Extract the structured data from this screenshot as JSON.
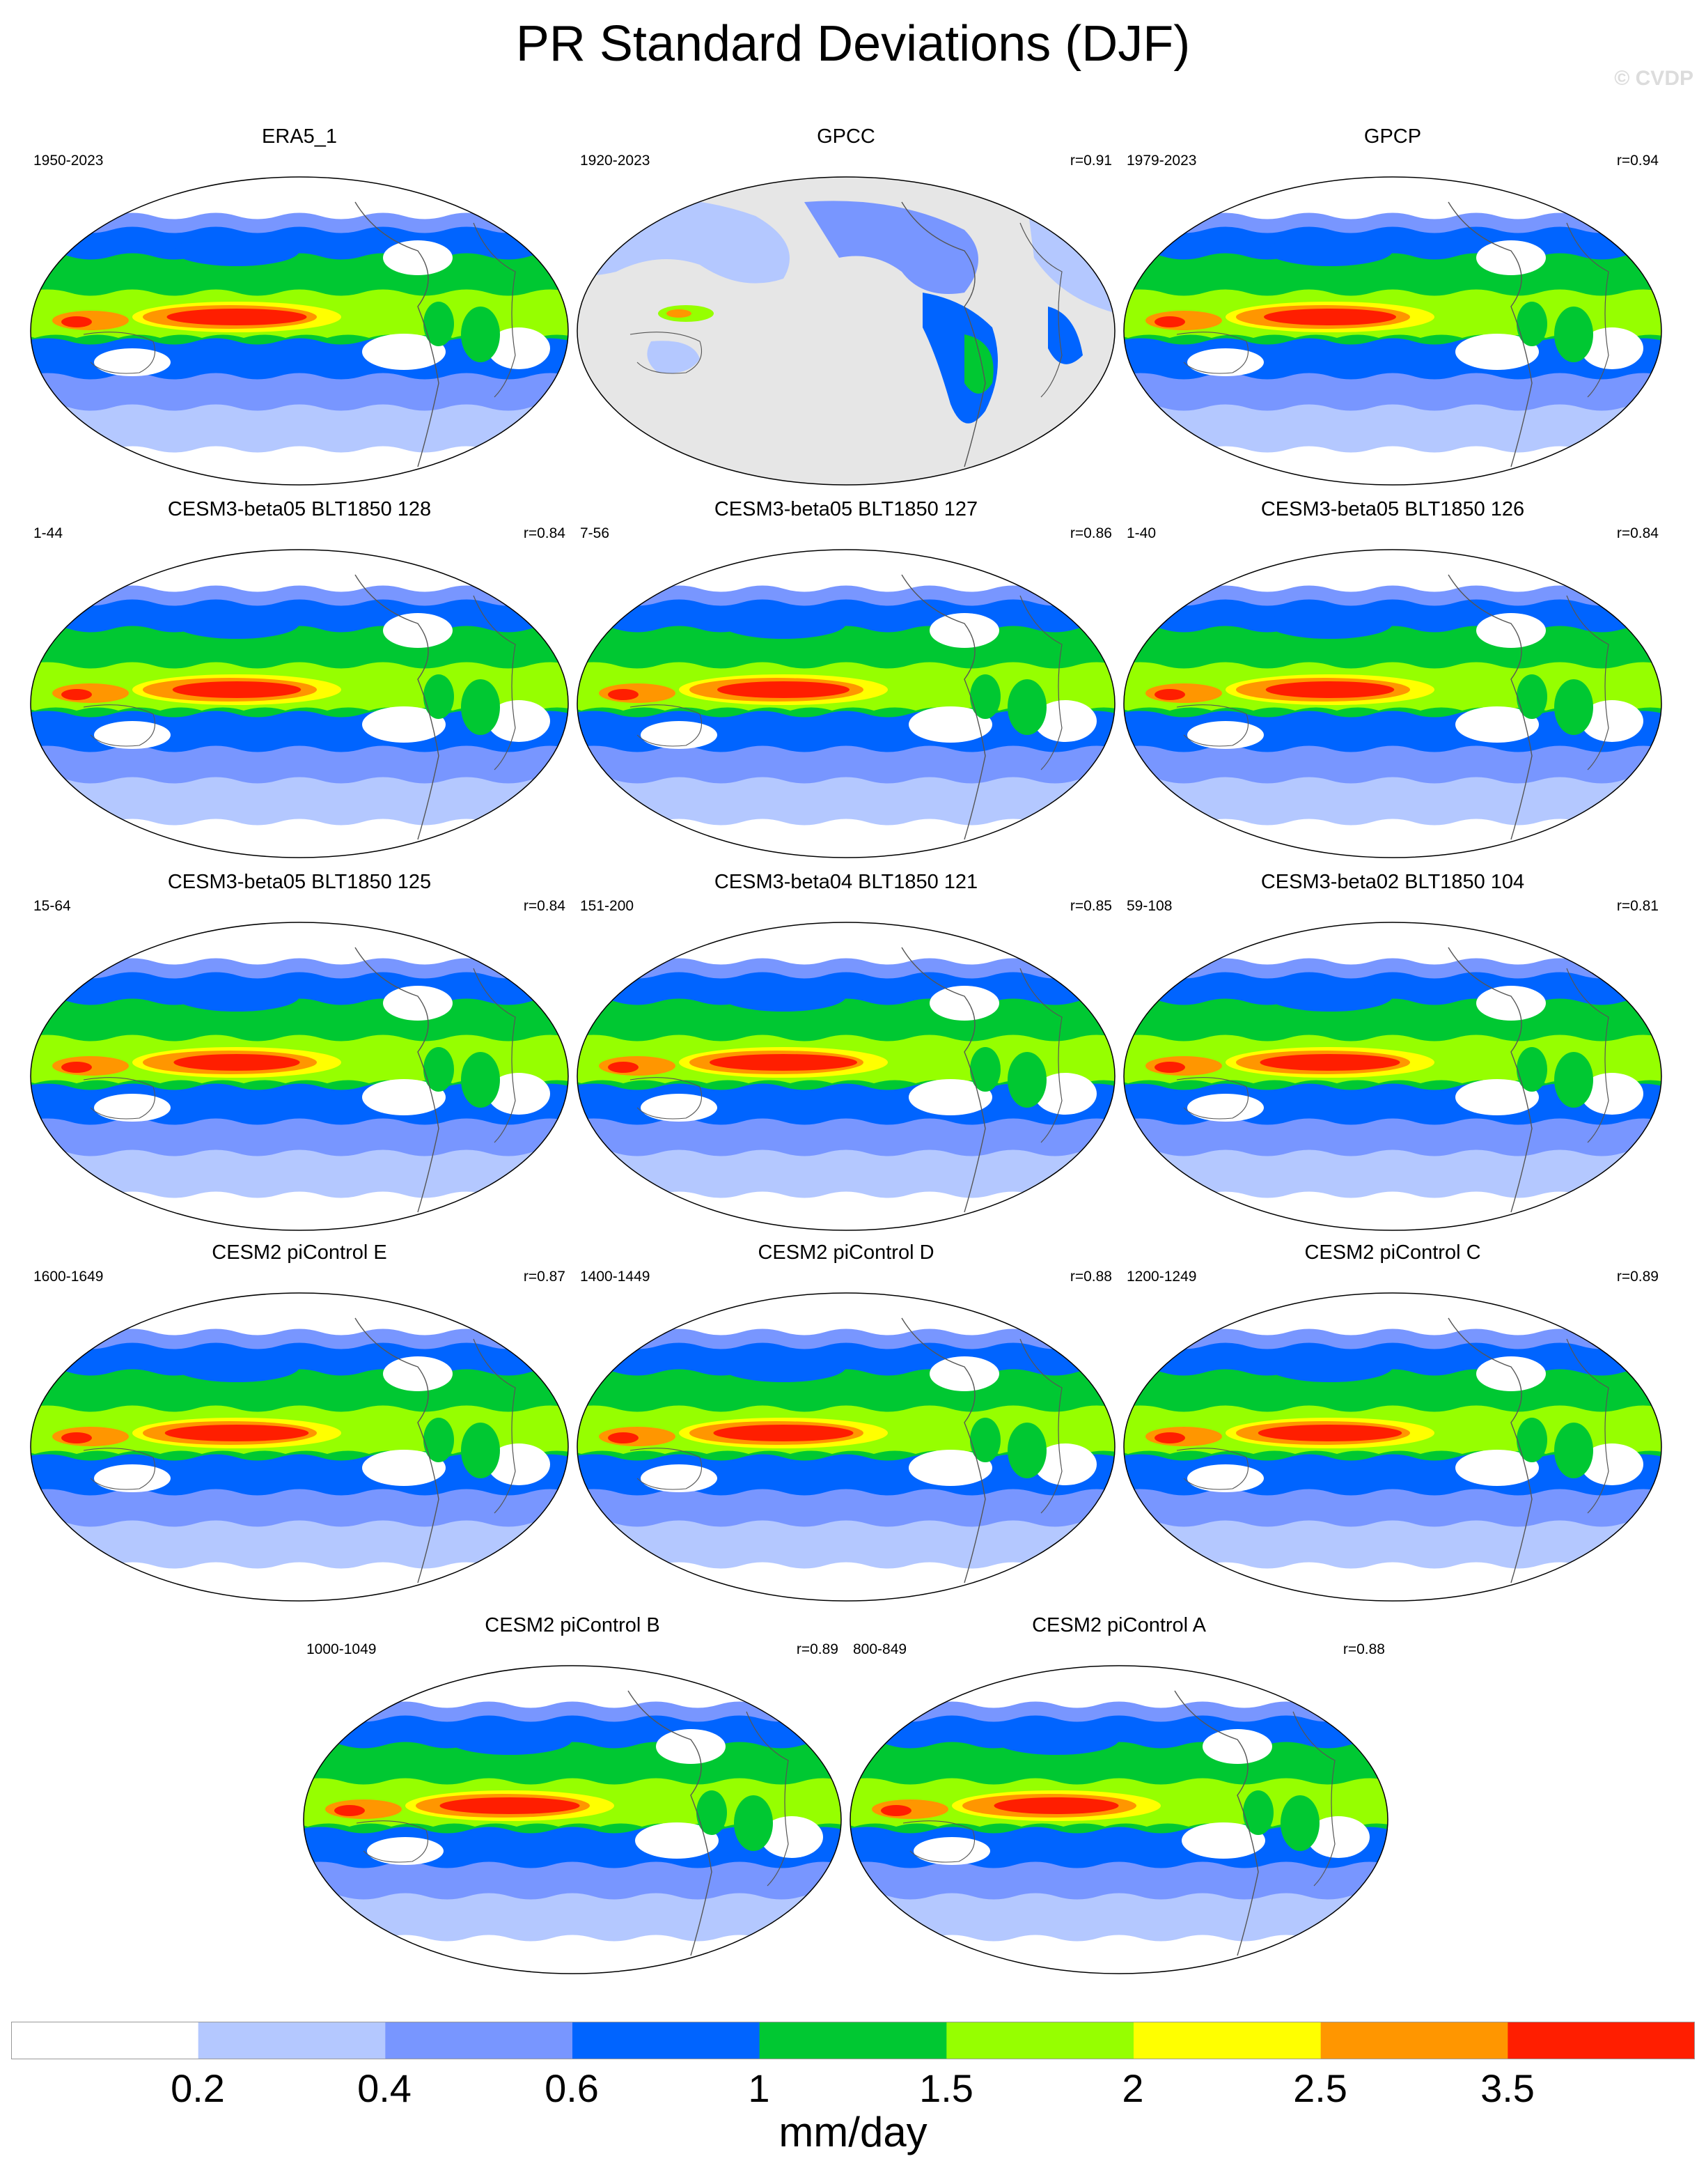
{
  "title": "PR Standard Deviations (DJF)",
  "watermark": "© CVDP",
  "panels": [
    {
      "title": "ERA5_1",
      "years": "1950-2023",
      "corr": ""
    },
    {
      "title": "GPCC",
      "years": "1920-2023",
      "corr": "r=0.91"
    },
    {
      "title": "GPCP",
      "years": "1979-2023",
      "corr": "r=0.94"
    },
    {
      "title": "CESM3-beta05 BLT1850 128",
      "years": "1-44",
      "corr": "r=0.84"
    },
    {
      "title": "CESM3-beta05 BLT1850 127",
      "years": "7-56",
      "corr": "r=0.86"
    },
    {
      "title": "CESM3-beta05 BLT1850 126",
      "years": "1-40",
      "corr": "r=0.84"
    },
    {
      "title": "CESM3-beta05 BLT1850 125",
      "years": "15-64",
      "corr": "r=0.84"
    },
    {
      "title": "CESM3-beta04 BLT1850 121",
      "years": "151-200",
      "corr": "r=0.85"
    },
    {
      "title": "CESM3-beta02 BLT1850 104",
      "years": "59-108",
      "corr": "r=0.81"
    },
    {
      "title": "CESM2 piControl E",
      "years": "1600-1649",
      "corr": "r=0.87"
    },
    {
      "title": "CESM2 piControl D",
      "years": "1400-1449",
      "corr": "r=0.88"
    },
    {
      "title": "CESM2 piControl C",
      "years": "1200-1249",
      "corr": "r=0.89"
    },
    {
      "title": "CESM2 piControl B",
      "years": "1000-1049",
      "corr": "r=0.89"
    },
    {
      "title": "CESM2 piControl A",
      "years": "800-849",
      "corr": "r=0.88"
    }
  ],
  "colorbar": {
    "unit": "mm/day",
    "ticks": [
      "0.2",
      "0.4",
      "0.6",
      "1",
      "1.5",
      "2",
      "2.5",
      "3.5"
    ],
    "colors": [
      "#ffffff",
      "#b4c8ff",
      "#7896ff",
      "#0064ff",
      "#00c832",
      "#96ff00",
      "#ffff00",
      "#ff9600",
      "#ff1e00"
    ]
  },
  "colors": {
    "land_mask": "#e6e6e6",
    "coastline": "#555555"
  }
}
